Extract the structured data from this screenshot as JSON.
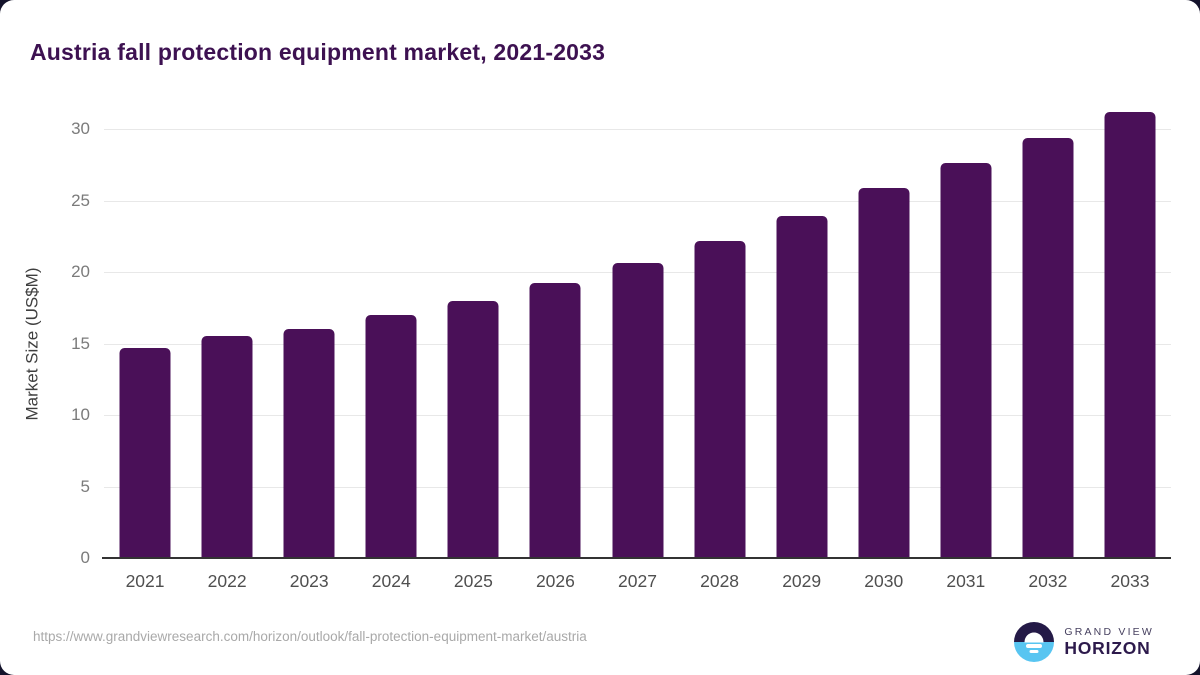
{
  "page": {
    "title": "Austria fall protection equipment market, 2021-2033"
  },
  "chart_data": {
    "type": "bar",
    "title": "Austria fall protection equipment market, 2021-2033",
    "categories": [
      "2021",
      "2022",
      "2023",
      "2024",
      "2025",
      "2026",
      "2027",
      "2028",
      "2029",
      "2030",
      "2031",
      "2032",
      "2033"
    ],
    "values": [
      14.7,
      15.5,
      16.0,
      17.0,
      18.0,
      19.2,
      20.6,
      22.2,
      23.9,
      25.9,
      27.6,
      29.4,
      31.2
    ],
    "xlabel": "",
    "ylabel": "Market Size (US$M)",
    "ylim": [
      0,
      30
    ],
    "yticks": [
      0,
      5,
      10,
      15,
      20,
      25,
      30
    ],
    "grid": true,
    "legend": false,
    "bar_color": "#4a1058"
  },
  "footer": {
    "url": "https://www.grandviewresearch.com/horizon/outlook/fall-protection-equipment-market/austria",
    "brand": {
      "line1": "GRAND VIEW",
      "line2": "HORIZON"
    }
  },
  "colors": {
    "accent_bar": "#4a1058",
    "title_text": "#3d1151",
    "grid_line": "#e8e8e8",
    "axis_line": "#333333",
    "tick_text": "#7b7b7b",
    "logo_dark": "#241a47",
    "logo_blue": "#58c5f1"
  }
}
